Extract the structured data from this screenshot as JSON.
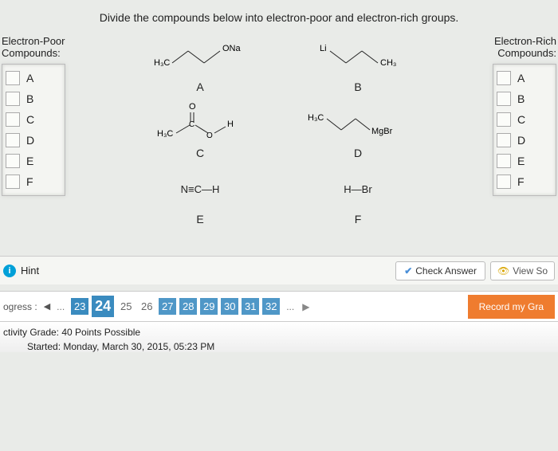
{
  "question": "Divide the compounds below into electron-poor and electron-rich groups.",
  "leftHeading": "Electron-Poor Compounds:",
  "rightHeading": "Electron-Rich Compounds:",
  "letters": [
    "A",
    "B",
    "C",
    "D",
    "E",
    "F"
  ],
  "compounds": {
    "A": {
      "label": "A",
      "top_left": "H₃C",
      "top_right": "ONa"
    },
    "B": {
      "label": "B",
      "top_left": "Li",
      "top_right": "CH₃"
    },
    "C": {
      "label": "C",
      "left": "H₃C",
      "right": "H",
      "line2": "O",
      "line3": "C",
      "line4": "O"
    },
    "D": {
      "label": "D",
      "left": "H₃C",
      "right": "MgBr"
    },
    "E": {
      "label": "E",
      "formula": "N≡C—H"
    },
    "F": {
      "label": "F",
      "formula": "H—Br"
    }
  },
  "hint": {
    "badge": "i",
    "label": "Hint"
  },
  "checkAnswer": "Check Answer",
  "viewSolution": "View So",
  "progress": {
    "label": "ogress :",
    "ellipsisL": "...",
    "numbers": [
      {
        "n": "23",
        "state": "done"
      },
      {
        "n": "24",
        "state": "current"
      },
      {
        "n": "25",
        "state": "plain"
      },
      {
        "n": "26",
        "state": "plain"
      },
      {
        "n": "27",
        "state": "todo"
      },
      {
        "n": "28",
        "state": "todo"
      },
      {
        "n": "29",
        "state": "todo"
      },
      {
        "n": "30",
        "state": "todo"
      },
      {
        "n": "31",
        "state": "todo"
      },
      {
        "n": "32",
        "state": "todo"
      }
    ],
    "ellipsisR": "..."
  },
  "recordBtn": "Record my Gra",
  "footer": {
    "line1": "ctivity Grade: 40 Points Possible",
    "line2": "Started: Monday, March 30, 2015, 05:23 PM"
  },
  "colors": {
    "accent": "#3a8bbf",
    "orange": "#ef7c2f",
    "hintBadge": "#00a0d8"
  }
}
